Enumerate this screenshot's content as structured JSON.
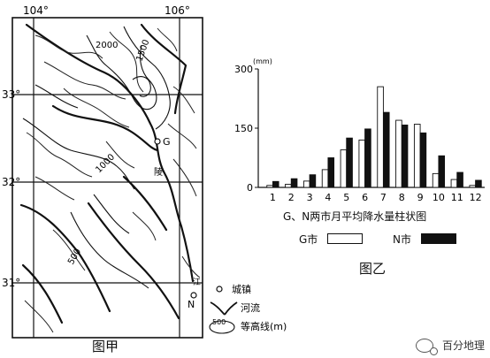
{
  "map": {
    "caption": "图甲",
    "lon_labels": [
      "104°",
      "106°"
    ],
    "lat_labels": [
      "33°",
      "32°",
      "31°"
    ],
    "contour_labels": [
      "2000",
      "1500",
      "1000",
      "500"
    ],
    "point_labels": [
      "G",
      "N"
    ],
    "map_text": [
      "陵",
      "江"
    ],
    "legend": {
      "town": "城镇",
      "river": "河流",
      "contour_value": "500",
      "contour": "等高线(m)"
    }
  },
  "chart": {
    "caption": "图乙",
    "title": "G、N两市月平均降水量柱状图",
    "legend_g": "G市",
    "legend_n": "N市"
  },
  "chart_data": {
    "type": "bar",
    "title": "G、N两市月平均降水量柱状图",
    "unit": "(mm)",
    "categories": [
      "1",
      "2",
      "3",
      "4",
      "5",
      "6",
      "7",
      "8",
      "9",
      "10",
      "11",
      "12"
    ],
    "ylim": [
      0,
      300
    ],
    "yticks": [
      "0",
      "150",
      "300"
    ],
    "series": [
      {
        "name": "G市",
        "color": "#ffffff",
        "values": [
          5,
          8,
          16,
          45,
          95,
          120,
          255,
          170,
          160,
          35,
          20,
          5
        ]
      },
      {
        "name": "N市",
        "color": "#111111",
        "values": [
          15,
          22,
          32,
          75,
          125,
          148,
          190,
          158,
          138,
          80,
          38,
          18
        ]
      }
    ]
  },
  "watermark": {
    "text": "百分地理"
  }
}
